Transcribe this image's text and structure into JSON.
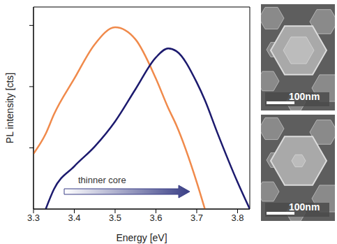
{
  "chart_data": {
    "type": "line",
    "x_label": "Energy [eV]",
    "y_label": "PL intensity [cts]",
    "x": [
      3.3,
      3.33,
      3.35,
      3.4,
      3.45,
      3.5,
      3.55,
      3.6,
      3.63,
      3.65,
      3.7,
      3.72,
      3.75,
      3.8,
      3.83
    ],
    "series": [
      {
        "color": "#f08a4b",
        "values": [
          800,
          1700,
          3500,
          13500,
          49000,
          93000,
          59000,
          13500,
          4500,
          2350,
          275,
          100,
          null,
          null,
          null
        ]
      },
      {
        "color": "#1c1a6e",
        "values": [
          null,
          100,
          210,
          500,
          1050,
          2700,
          9100,
          30000,
          42000,
          38000,
          11700,
          6000,
          1800,
          275,
          100
        ]
      }
    ],
    "xlim": [
      3.3,
      3.83
    ],
    "xticks": [
      3.3,
      3.4,
      3.5,
      3.6,
      3.7,
      3.8
    ],
    "ylim": [
      100,
      200000
    ],
    "yticks": [
      1000,
      10000,
      100000
    ],
    "log": "y",
    "tick_labels": "x",
    "annotations": [
      {
        "text": "thinner core"
      }
    ]
  },
  "images": [
    {
      "scale_bar": "100nm"
    },
    {
      "scale_bar": "100nm"
    }
  ]
}
